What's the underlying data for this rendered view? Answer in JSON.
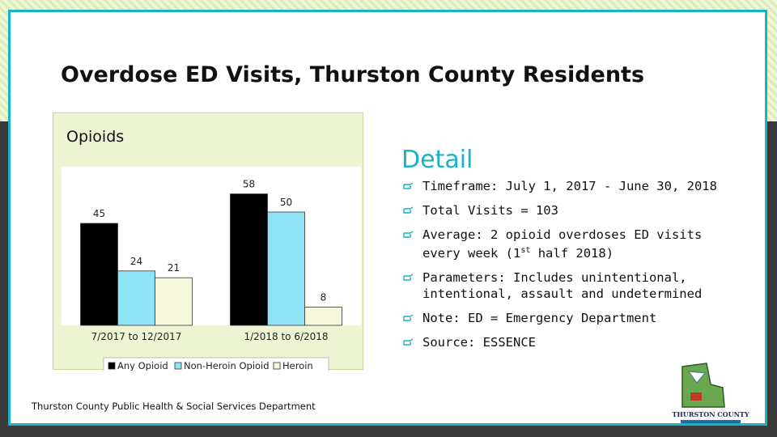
{
  "title": "Overdose ED Visits, Thurston County Residents",
  "chart_data": {
    "type": "bar",
    "title": "Opioids",
    "categories": [
      "7/2017 to 12/2017",
      "1/2018 to 6/2018"
    ],
    "series": [
      {
        "name": "Any Opioid",
        "values": [
          45,
          58
        ],
        "color": "#000000"
      },
      {
        "name": "Non-Heroin Opioid",
        "values": [
          24,
          50
        ],
        "color": "#8ee3f5"
      },
      {
        "name": "Heroin",
        "values": [
          21,
          8
        ],
        "color": "#f5f8dc"
      }
    ],
    "ylim": [
      0,
      70
    ],
    "legend": "bottom",
    "data_labels": true
  },
  "detail": {
    "heading": "Detail",
    "bullets": [
      "Timeframe: July 1, 2017 - June 30, 2018",
      "Total Visits = 103",
      "Average: 2 opioid overdoses ED visits every week (1st half 2018)",
      "Parameters: Includes unintentional, intentional, assault and undetermined",
      "Note: ED = Emergency Department",
      "Source: ESSENCE"
    ]
  },
  "footer": "Thurston County Public Health & Social Services Department",
  "logo": {
    "name": "THURSTON COUNTY"
  }
}
